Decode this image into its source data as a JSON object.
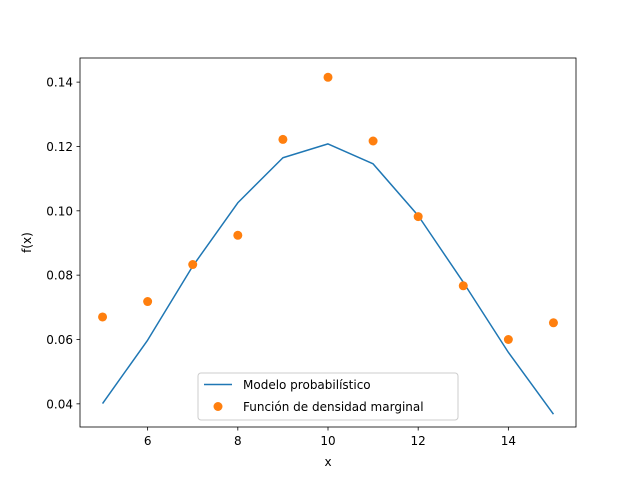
{
  "chart_data": {
    "type": "line",
    "title": "",
    "xlabel": "x",
    "ylabel": "f(x)",
    "xlim": [
      4.5,
      15.5
    ],
    "ylim": [
      0.0328,
      0.1475
    ],
    "x_ticks": [
      6,
      8,
      10,
      12,
      14
    ],
    "x_tick_labels": [
      "6",
      "8",
      "10",
      "12",
      "14"
    ],
    "y_ticks": [
      0.04,
      0.06,
      0.08,
      0.1,
      0.12,
      0.14
    ],
    "y_tick_labels": [
      "0.04",
      "0.06",
      "0.08",
      "0.10",
      "0.12",
      "0.14"
    ],
    "grid": false,
    "legend_position": "lower-center",
    "x": [
      5,
      6,
      7,
      8,
      9,
      10,
      11,
      12,
      13,
      14,
      15
    ],
    "series": [
      {
        "name": "Modelo probabilístico",
        "kind": "line",
        "color": "#1f77b4",
        "values": [
          0.0401,
          0.0598,
          0.0828,
          0.1025,
          0.1165,
          0.1208,
          0.1146,
          0.0985,
          0.0778,
          0.056,
          0.0368
        ]
      },
      {
        "name": "Función de densidad marginal",
        "kind": "scatter",
        "color": "#ff7f0e",
        "values": [
          0.067,
          0.0718,
          0.0833,
          0.0924,
          0.1222,
          0.1415,
          0.1217,
          0.0982,
          0.0767,
          0.06,
          0.0652
        ]
      }
    ]
  }
}
